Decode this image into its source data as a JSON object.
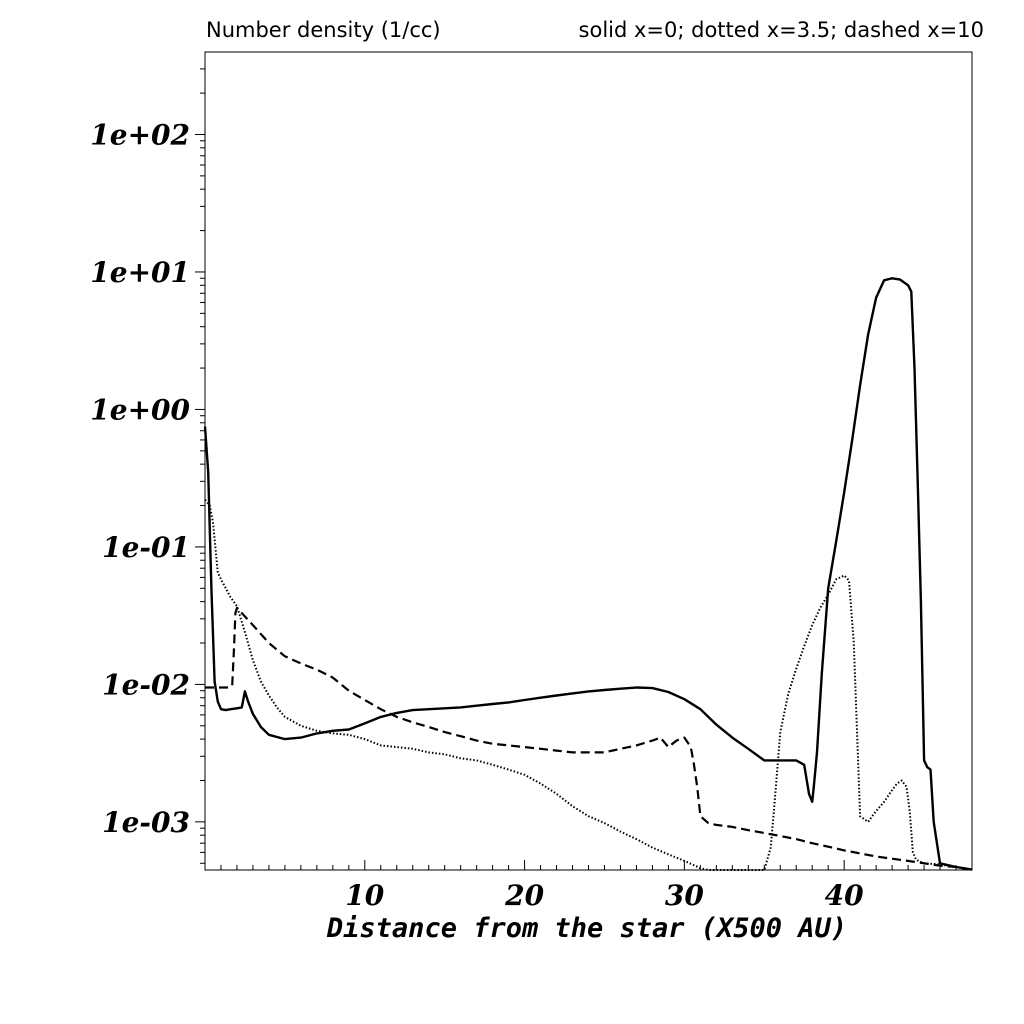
{
  "chart_data": {
    "type": "line",
    "title": "Number density (1/cc)",
    "subtitle": "solid x=0; dotted x=3.5; dashed x=10",
    "xlabel": "Distance from the star (X500 AU)",
    "ylabel": "",
    "xlim": [
      0,
      48
    ],
    "ylim_log10": [
      -3.35,
      2.6
    ],
    "yscale": "log",
    "xticks": [
      10,
      20,
      30,
      40
    ],
    "yticks": [
      {
        "value": 0.001,
        "label": "1e-03"
      },
      {
        "value": 0.01,
        "label": "1e-02"
      },
      {
        "value": 0.1,
        "label": "1e-01"
      },
      {
        "value": 1,
        "label": "1e+00"
      },
      {
        "value": 10,
        "label": "1e+01"
      },
      {
        "value": 100,
        "label": "1e+02"
      }
    ],
    "grid": false,
    "series": [
      {
        "style": "solid",
        "x": [
          0,
          0.2,
          0.4,
          0.6,
          0.8,
          1.0,
          1.3,
          1.6,
          2.0,
          2.3,
          2.5,
          2.7,
          3,
          3.5,
          4,
          5,
          6,
          7,
          8,
          9,
          10,
          11,
          12,
          13,
          14,
          15,
          16,
          17,
          18,
          19,
          20,
          21,
          22,
          23,
          24,
          25,
          26,
          27,
          28,
          29,
          30,
          31,
          32,
          33,
          34,
          35,
          36,
          37,
          37.5,
          37.8,
          38.0,
          38.1,
          38.3,
          38.6,
          39.0,
          39.5,
          40,
          40.5,
          41,
          41.5,
          42,
          42.5,
          43,
          43.5,
          44,
          44.2,
          44.4,
          44.6,
          44.8,
          45.0,
          45.2,
          45.4,
          45.6,
          46,
          47,
          48
        ],
        "y": [
          0.75,
          0.35,
          0.05,
          0.0105,
          0.0075,
          0.0066,
          0.0065,
          0.0066,
          0.0067,
          0.0068,
          0.0089,
          0.0075,
          0.0061,
          0.0049,
          0.0043,
          0.004,
          0.0041,
          0.0044,
          0.0046,
          0.0047,
          0.0052,
          0.0058,
          0.0062,
          0.0065,
          0.0066,
          0.0067,
          0.0068,
          0.007,
          0.0072,
          0.0074,
          0.0077,
          0.008,
          0.0083,
          0.0086,
          0.0089,
          0.0091,
          0.0093,
          0.0095,
          0.0094,
          0.0088,
          0.0078,
          0.0066,
          0.0051,
          0.0041,
          0.0034,
          0.0028,
          0.0028,
          0.0028,
          0.0026,
          0.0016,
          0.0014,
          0.0018,
          0.0032,
          0.012,
          0.05,
          0.11,
          0.25,
          0.6,
          1.5,
          3.5,
          6.5,
          8.7,
          9.0,
          8.8,
          8.0,
          7.2,
          2.0,
          0.3,
          0.04,
          0.0028,
          0.0025,
          0.0024,
          0.001,
          0.0005,
          0.00047,
          0.00045
        ]
      },
      {
        "style": "dotted",
        "x": [
          0,
          0.3,
          0.5,
          0.8,
          1.0,
          1.3,
          1.6,
          2.0,
          2.5,
          3.0,
          3.5,
          4.0,
          4.5,
          5,
          6,
          7,
          8,
          9,
          10,
          11,
          12,
          13,
          14,
          15,
          16,
          17,
          18,
          19,
          20,
          21,
          22,
          23,
          24,
          25,
          26,
          27,
          28,
          29,
          30,
          30.5,
          31.0,
          31.5,
          35,
          35.4,
          35.6,
          36,
          36.5,
          37,
          37.5,
          38,
          38.5,
          39,
          39.5,
          40,
          40.3,
          40.6,
          41.0,
          41.5,
          42,
          42.5,
          43,
          43.3,
          43.6,
          43.9,
          44.1,
          44.3,
          44.5,
          45,
          46,
          47,
          48
        ],
        "y": [
          0.22,
          0.2,
          0.15,
          0.065,
          0.058,
          0.05,
          0.043,
          0.037,
          0.024,
          0.015,
          0.0105,
          0.0083,
          0.0068,
          0.0058,
          0.005,
          0.0046,
          0.0044,
          0.0043,
          0.004,
          0.0036,
          0.0035,
          0.0034,
          0.0032,
          0.0031,
          0.0029,
          0.0028,
          0.0026,
          0.0024,
          0.0022,
          0.0019,
          0.0016,
          0.0013,
          0.0011,
          0.00098,
          0.00085,
          0.00075,
          0.00065,
          0.00058,
          0.00052,
          0.00049,
          0.00046,
          0.00044,
          0.00044,
          0.00065,
          0.0012,
          0.0045,
          0.0085,
          0.013,
          0.019,
          0.027,
          0.036,
          0.045,
          0.058,
          0.062,
          0.057,
          0.02,
          0.0011,
          0.001,
          0.0012,
          0.0014,
          0.0017,
          0.0019,
          0.002,
          0.0018,
          0.0012,
          0.0006,
          0.00053,
          0.0005,
          0.00049,
          0.00047,
          0.00045
        ]
      },
      {
        "style": "dashed",
        "x": [
          0,
          0.5,
          1.0,
          1.5,
          1.7,
          1.8,
          1.9,
          2.0,
          2.2,
          3,
          4,
          5,
          6,
          7,
          8,
          9,
          10,
          11,
          12,
          13,
          14,
          15,
          16,
          17,
          18,
          19,
          20,
          21,
          22,
          23,
          24,
          25,
          26,
          27,
          28,
          28.5,
          29,
          29.5,
          30,
          30.4,
          30.6,
          30.8,
          31,
          31.5,
          32,
          33,
          34,
          35,
          36,
          37,
          38,
          39,
          40,
          41,
          42,
          43,
          44,
          45,
          46,
          47,
          48
        ],
        "y": [
          0.0095,
          0.0095,
          0.0095,
          0.0095,
          0.0098,
          0.017,
          0.033,
          0.036,
          0.034,
          0.027,
          0.02,
          0.016,
          0.0142,
          0.0128,
          0.0112,
          0.009,
          0.0077,
          0.0066,
          0.0058,
          0.0053,
          0.0049,
          0.0045,
          0.0042,
          0.0039,
          0.0037,
          0.0036,
          0.0035,
          0.0034,
          0.0033,
          0.0032,
          0.0032,
          0.0032,
          0.0034,
          0.0036,
          0.0039,
          0.0041,
          0.0035,
          0.0039,
          0.0041,
          0.0035,
          0.0026,
          0.0018,
          0.0011,
          0.00098,
          0.00095,
          0.00092,
          0.00087,
          0.00083,
          0.00079,
          0.00075,
          0.0007,
          0.00066,
          0.00062,
          0.00059,
          0.00056,
          0.00054,
          0.00052,
          0.0005,
          0.00048,
          0.00047,
          0.00045
        ]
      }
    ]
  }
}
